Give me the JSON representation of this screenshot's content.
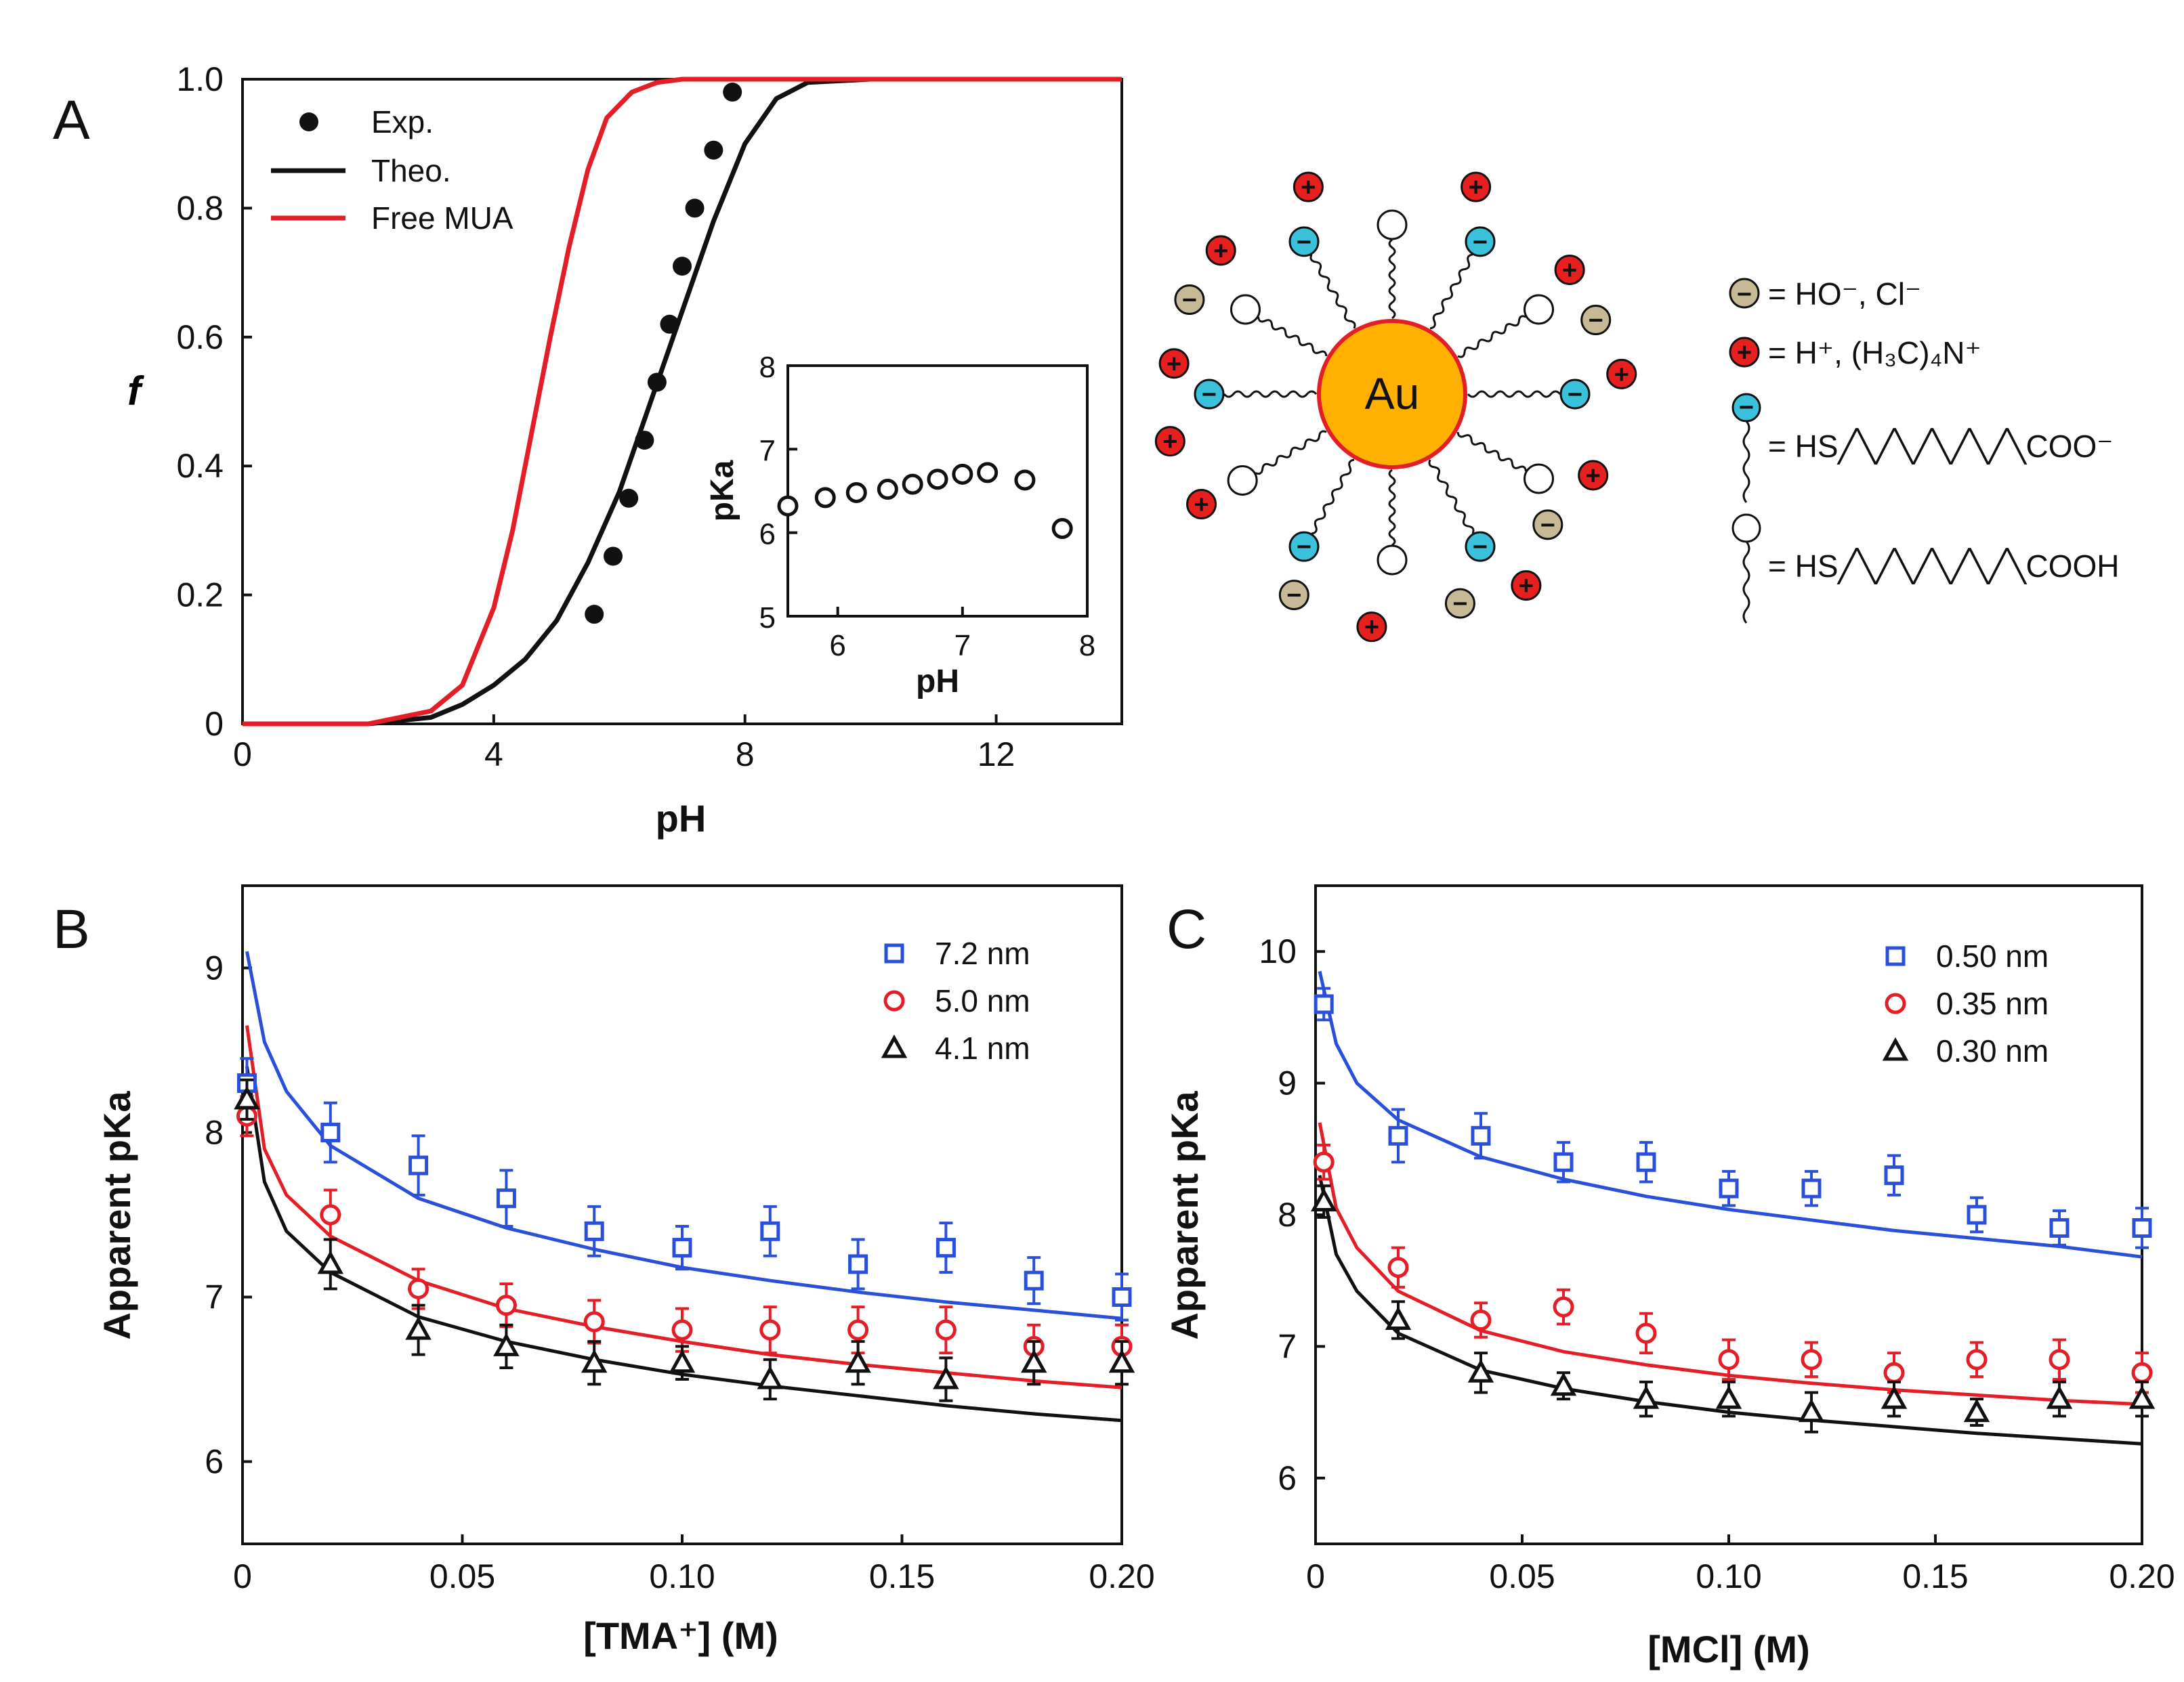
{
  "panel_labels": {
    "a": "A",
    "b": "B",
    "c": "C"
  },
  "colors": {
    "blue": "#2a4fd8",
    "red": "#e41e26",
    "black": "#111111",
    "cyan": "#3cc1dc",
    "tan": "#c8b996",
    "ion_red": "#e5201f"
  },
  "schematic": {
    "core_label": "Au",
    "key": {
      "anion_text": "= HO⁻,  Cl⁻",
      "cation_text": "= H⁺,  (H₃C)₄N⁺",
      "deprot_text": "= HS╱╲╱╲╱╲╱╲╱╲COO⁻",
      "prot_text": "= HS╱╲╱╲╱╲╱╲╱╲COOH"
    },
    "symbols": {
      "minus": "−",
      "plus": "+"
    }
  },
  "chart_data": [
    {
      "id": "A",
      "type": "line",
      "title": "",
      "xlabel": "pH",
      "ylabel": "f",
      "xlim": [
        0,
        14
      ],
      "ylim": [
        0,
        1.0
      ],
      "xticks": [
        0,
        4,
        8,
        12
      ],
      "yticks": [
        0,
        0.2,
        0.4,
        0.6,
        0.8,
        1.0
      ],
      "ytick_labels": [
        "0",
        "0.2",
        "0.4",
        "0.6",
        "0.8",
        "1.0"
      ],
      "legend": {
        "position": "top-left",
        "entries": [
          "Exp.",
          "Theo.",
          "Free MUA"
        ]
      },
      "series": [
        {
          "name": "Exp.",
          "style": "scatter",
          "color": "#111111",
          "x": [
            5.6,
            5.9,
            6.15,
            6.4,
            6.6,
            6.8,
            7.0,
            7.2,
            7.5,
            7.8
          ],
          "y": [
            0.17,
            0.26,
            0.35,
            0.44,
            0.53,
            0.62,
            0.71,
            0.8,
            0.89,
            0.98
          ]
        },
        {
          "name": "Theo.",
          "style": "line",
          "color": "#111111",
          "x": [
            0,
            2,
            3,
            3.5,
            4,
            4.5,
            5,
            5.5,
            6,
            6.5,
            7,
            7.5,
            8,
            8.5,
            9,
            10,
            14
          ],
          "y": [
            0,
            0,
            0.01,
            0.03,
            0.06,
            0.1,
            0.16,
            0.25,
            0.36,
            0.5,
            0.64,
            0.78,
            0.9,
            0.97,
            0.995,
            1.0,
            1.0
          ]
        },
        {
          "name": "Free MUA",
          "style": "line",
          "color": "#e41e26",
          "x": [
            0,
            2,
            3,
            3.5,
            4,
            4.3,
            4.6,
            4.9,
            5.2,
            5.5,
            5.8,
            6.2,
            6.6,
            7,
            14
          ],
          "y": [
            0,
            0,
            0.02,
            0.06,
            0.18,
            0.3,
            0.45,
            0.6,
            0.74,
            0.86,
            0.94,
            0.98,
            0.995,
            1.0,
            1.0
          ]
        }
      ]
    },
    {
      "id": "A-inset",
      "type": "scatter",
      "xlabel": "pH",
      "ylabel": "pKa",
      "xlim": [
        5.6,
        8
      ],
      "ylim": [
        5,
        8
      ],
      "xticks": [
        6,
        7,
        8
      ],
      "yticks": [
        5,
        6,
        7,
        8
      ],
      "series": [
        {
          "name": "pKa",
          "color": "#111111",
          "x": [
            5.6,
            5.9,
            6.15,
            6.4,
            6.6,
            6.8,
            7.0,
            7.2,
            7.5,
            7.8
          ],
          "y": [
            6.32,
            6.42,
            6.48,
            6.52,
            6.58,
            6.64,
            6.7,
            6.72,
            6.63,
            6.05
          ]
        }
      ]
    },
    {
      "id": "B",
      "type": "scatter",
      "xlabel": "[TMA⁺] (M)",
      "ylabel": "Apparent pKa",
      "xlim": [
        0,
        0.2
      ],
      "ylim": [
        5.5,
        9.5
      ],
      "xticks": [
        0,
        0.05,
        0.1,
        0.15,
        0.2
      ],
      "xtick_labels": [
        "0",
        "0.05",
        "0.10",
        "0.15",
        "0.20"
      ],
      "yticks": [
        6,
        7,
        8,
        9
      ],
      "legend": {
        "position": "top-right",
        "entries": [
          "7.2 nm",
          "5.0 nm",
          "4.1 nm"
        ]
      },
      "series": [
        {
          "name": "7.2 nm",
          "marker": "square",
          "color": "#2a4fd8",
          "x": [
            0.001,
            0.02,
            0.04,
            0.06,
            0.08,
            0.1,
            0.12,
            0.14,
            0.16,
            0.18,
            0.2
          ],
          "y": [
            8.3,
            8.0,
            7.8,
            7.6,
            7.4,
            7.3,
            7.4,
            7.2,
            7.3,
            7.1,
            7.0
          ],
          "err": [
            0.15,
            0.18,
            0.18,
            0.17,
            0.15,
            0.13,
            0.15,
            0.15,
            0.15,
            0.14,
            0.14
          ],
          "fit_x": [
            0.001,
            0.005,
            0.01,
            0.02,
            0.04,
            0.06,
            0.08,
            0.1,
            0.12,
            0.14,
            0.16,
            0.18,
            0.2
          ],
          "fit_y": [
            9.1,
            8.55,
            8.25,
            7.92,
            7.6,
            7.42,
            7.29,
            7.18,
            7.1,
            7.03,
            6.97,
            6.92,
            6.87
          ]
        },
        {
          "name": "5.0 nm",
          "marker": "circle",
          "color": "#e41e26",
          "x": [
            0.001,
            0.02,
            0.04,
            0.06,
            0.08,
            0.1,
            0.12,
            0.14,
            0.16,
            0.18,
            0.2
          ],
          "y": [
            8.1,
            7.5,
            7.05,
            6.95,
            6.85,
            6.8,
            6.8,
            6.8,
            6.8,
            6.7,
            6.7
          ],
          "err": [
            0.12,
            0.15,
            0.12,
            0.13,
            0.13,
            0.13,
            0.14,
            0.14,
            0.14,
            0.13,
            0.13
          ],
          "fit_x": [
            0.001,
            0.005,
            0.01,
            0.02,
            0.04,
            0.06,
            0.08,
            0.1,
            0.12,
            0.14,
            0.16,
            0.18,
            0.2
          ],
          "fit_y": [
            8.65,
            7.9,
            7.62,
            7.37,
            7.1,
            6.93,
            6.82,
            6.73,
            6.65,
            6.59,
            6.54,
            6.49,
            6.45
          ]
        },
        {
          "name": "4.1 nm",
          "marker": "triangle",
          "color": "#111111",
          "x": [
            0.001,
            0.02,
            0.04,
            0.06,
            0.08,
            0.1,
            0.12,
            0.14,
            0.16,
            0.18,
            0.2
          ],
          "y": [
            8.2,
            7.2,
            6.8,
            6.7,
            6.6,
            6.6,
            6.5,
            6.6,
            6.5,
            6.6,
            6.6
          ],
          "err": [
            0.12,
            0.15,
            0.15,
            0.13,
            0.13,
            0.1,
            0.12,
            0.13,
            0.13,
            0.13,
            0.13
          ],
          "fit_x": [
            0.001,
            0.005,
            0.01,
            0.02,
            0.04,
            0.06,
            0.08,
            0.1,
            0.12,
            0.14,
            0.16,
            0.18,
            0.2
          ],
          "fit_y": [
            8.4,
            7.7,
            7.4,
            7.15,
            6.88,
            6.73,
            6.62,
            6.53,
            6.46,
            6.4,
            6.34,
            6.29,
            6.25
          ]
        }
      ]
    },
    {
      "id": "C",
      "type": "scatter",
      "xlabel": "[MCl] (M)",
      "ylabel": "Apparent pKa",
      "xlim": [
        0,
        0.2
      ],
      "ylim": [
        5.5,
        10.5
      ],
      "xticks": [
        0,
        0.05,
        0.1,
        0.15,
        0.2
      ],
      "xtick_labels": [
        "0",
        "0.05",
        "0.10",
        "0.15",
        "0.20"
      ],
      "yticks": [
        6,
        7,
        8,
        9,
        10
      ],
      "legend": {
        "position": "top-right",
        "entries": [
          "0.50 nm",
          "0.35 nm",
          "0.30 nm"
        ]
      },
      "series": [
        {
          "name": "0.50 nm",
          "marker": "square",
          "color": "#2a4fd8",
          "x": [
            0.002,
            0.02,
            0.04,
            0.06,
            0.08,
            0.1,
            0.12,
            0.14,
            0.16,
            0.18,
            0.2
          ],
          "y": [
            9.6,
            8.6,
            8.6,
            8.4,
            8.4,
            8.2,
            8.2,
            8.3,
            8.0,
            7.9,
            7.9
          ],
          "err": [
            0.12,
            0.2,
            0.17,
            0.15,
            0.15,
            0.13,
            0.13,
            0.15,
            0.13,
            0.13,
            0.15
          ],
          "fit_x": [
            0.001,
            0.005,
            0.01,
            0.02,
            0.04,
            0.06,
            0.08,
            0.1,
            0.12,
            0.14,
            0.16,
            0.18,
            0.2
          ],
          "fit_y": [
            9.85,
            9.3,
            9.0,
            8.72,
            8.44,
            8.27,
            8.14,
            8.04,
            7.96,
            7.88,
            7.82,
            7.76,
            7.68
          ]
        },
        {
          "name": "0.35 nm",
          "marker": "circle",
          "color": "#e41e26",
          "x": [
            0.002,
            0.02,
            0.04,
            0.06,
            0.08,
            0.1,
            0.12,
            0.14,
            0.16,
            0.18,
            0.2
          ],
          "y": [
            8.4,
            7.6,
            7.2,
            7.3,
            7.1,
            6.9,
            6.9,
            6.8,
            6.9,
            6.9,
            6.8
          ],
          "err": [
            0.13,
            0.15,
            0.13,
            0.13,
            0.15,
            0.15,
            0.13,
            0.15,
            0.13,
            0.15,
            0.15
          ],
          "fit_x": [
            0.001,
            0.005,
            0.01,
            0.02,
            0.04,
            0.06,
            0.08,
            0.1,
            0.12,
            0.14,
            0.16,
            0.18,
            0.2
          ],
          "fit_y": [
            8.7,
            8.05,
            7.75,
            7.42,
            7.12,
            6.96,
            6.86,
            6.78,
            6.72,
            6.67,
            6.63,
            6.59,
            6.56
          ]
        },
        {
          "name": "0.30 nm",
          "marker": "triangle",
          "color": "#111111",
          "x": [
            0.002,
            0.02,
            0.04,
            0.06,
            0.08,
            0.1,
            0.12,
            0.14,
            0.16,
            0.18,
            0.2
          ],
          "y": [
            8.1,
            7.2,
            6.8,
            6.7,
            6.6,
            6.6,
            6.5,
            6.6,
            6.5,
            6.6,
            6.6
          ],
          "err": [
            0.12,
            0.14,
            0.15,
            0.1,
            0.13,
            0.13,
            0.15,
            0.13,
            0.1,
            0.13,
            0.13
          ],
          "fit_x": [
            0.001,
            0.005,
            0.01,
            0.02,
            0.04,
            0.06,
            0.08,
            0.1,
            0.12,
            0.14,
            0.16,
            0.18,
            0.2
          ],
          "fit_y": [
            8.3,
            7.7,
            7.42,
            7.1,
            6.82,
            6.68,
            6.58,
            6.5,
            6.44,
            6.39,
            6.34,
            6.3,
            6.26
          ]
        }
      ]
    }
  ]
}
